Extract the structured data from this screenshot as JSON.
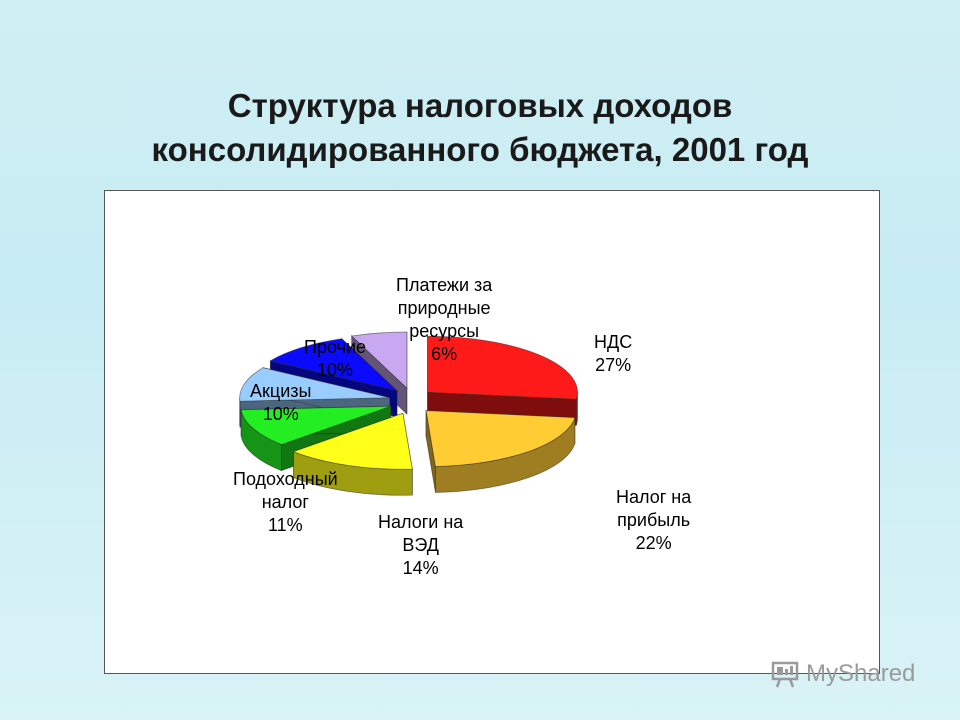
{
  "slide": {
    "title_line1": "Структура налоговых доходов",
    "title_line2": "консолидированного бюджета, 2001 год"
  },
  "chart_data": {
    "type": "pie",
    "style": "3d-exploded",
    "slices": [
      {
        "id": "nds",
        "lines": [
          "НДС"
        ],
        "value": 27,
        "value_label": "27%",
        "color": "#ff1a1a"
      },
      {
        "id": "profit",
        "lines": [
          "Налог на",
          "прибыль"
        ],
        "value": 22,
        "value_label": "22%",
        "color": "#ffcc33"
      },
      {
        "id": "ved",
        "lines": [
          "Налоги на",
          "ВЭД"
        ],
        "value": 14,
        "value_label": "14%",
        "color": "#ffff1a"
      },
      {
        "id": "income",
        "lines": [
          "Подоходный",
          "налог"
        ],
        "value": 11,
        "value_label": "11%",
        "color": "#22ee22"
      },
      {
        "id": "excise",
        "lines": [
          "Акцизы"
        ],
        "value": 10,
        "value_label": "10%",
        "color": "#99ccff"
      },
      {
        "id": "other",
        "lines": [
          "Прочие"
        ],
        "value": 10,
        "value_label": "10%",
        "color": "#0a0aff"
      },
      {
        "id": "resources",
        "lines": [
          "Платежи за",
          "природные",
          "ресурсы"
        ],
        "value": 6,
        "value_label": "6%",
        "color": "#c8a8f0"
      }
    ]
  },
  "watermark": {
    "text": "MyShared"
  }
}
